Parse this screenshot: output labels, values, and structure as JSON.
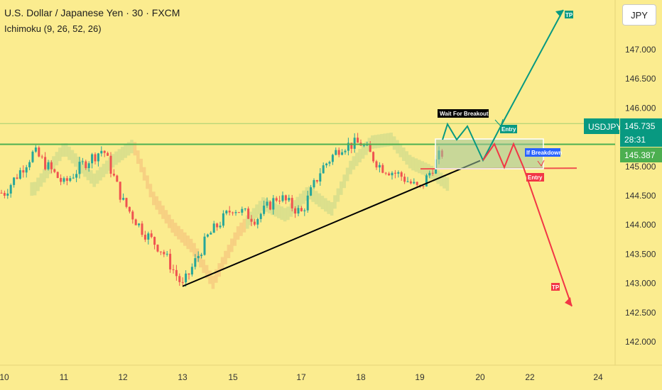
{
  "header": {
    "title": "U.S. Dollar / Japanese Yen · 30 · FXCM",
    "indicator": "Ichimoku (9, 26, 52, 26)",
    "currency_button": "JPY"
  },
  "colors": {
    "background": "#fbec8f",
    "bull_candle": "#26a69a",
    "bear_candle": "#ef5350",
    "resistance_line": "#4caf50",
    "support_line": "#ef5350",
    "trendline": "#000000",
    "bull_path": "#089981",
    "bear_path": "#f23645",
    "breakdown_label": "#2962ff",
    "cloud": "#c8d98a",
    "cloud_bear": "#f5c07a"
  },
  "chart_data": {
    "type": "candlestick",
    "symbol_tag": "USDJPY",
    "last_price": "145.735",
    "countdown": "28:31",
    "secondary_price": "145.387",
    "y_axis": {
      "ticks": [
        "147.000",
        "146.500",
        "146.000",
        "145.000",
        "144.500",
        "144.000",
        "143.500",
        "143.000",
        "142.500",
        "142.000"
      ],
      "tick_values": [
        147.0,
        146.5,
        146.0,
        145.0,
        144.5,
        144.0,
        143.5,
        143.0,
        142.5,
        142.0
      ],
      "range": [
        141.6,
        147.85
      ]
    },
    "x_axis": {
      "ticks": [
        "10",
        "11",
        "12",
        "13",
        "15",
        "17",
        "18",
        "19",
        "20",
        "22",
        "24"
      ]
    },
    "levels": {
      "resistance": 145.38,
      "support": 144.96,
      "current": 145.735
    },
    "trendline": {
      "from": {
        "day": "13",
        "price": 142.95
      },
      "to": {
        "day": "20",
        "price": 145.1
      }
    },
    "price_path": [
      {
        "day": "10",
        "price": 144.55
      },
      {
        "day": "10",
        "price": 145.25
      },
      {
        "day": "11",
        "price": 144.7
      },
      {
        "day": "11",
        "price": 145.05
      },
      {
        "day": "11",
        "price": 145.3
      },
      {
        "day": "12",
        "price": 144.4
      },
      {
        "day": "12",
        "price": 143.9
      },
      {
        "day": "12",
        "price": 143.55
      },
      {
        "day": "13",
        "price": 142.95
      },
      {
        "day": "13",
        "price": 143.8
      },
      {
        "day": "15",
        "price": 144.3
      },
      {
        "day": "15",
        "price": 144.1
      },
      {
        "day": "15",
        "price": 144.5
      },
      {
        "day": "17",
        "price": 144.2
      },
      {
        "day": "17",
        "price": 144.95
      },
      {
        "day": "17",
        "price": 145.35
      },
      {
        "day": "18",
        "price": 145.4
      },
      {
        "day": "18",
        "price": 145.0
      },
      {
        "day": "18",
        "price": 144.85
      },
      {
        "day": "19",
        "price": 144.6
      },
      {
        "day": "19",
        "price": 145.2
      },
      {
        "day": "19",
        "price": 145.45
      }
    ],
    "annotations": {
      "wait_label": "Wait For Breakout",
      "entry_up": "Entry",
      "tp_up": "TP",
      "breakdown_label": "If Breakdown",
      "entry_down": "Entry",
      "tp_down": "TP"
    }
  }
}
